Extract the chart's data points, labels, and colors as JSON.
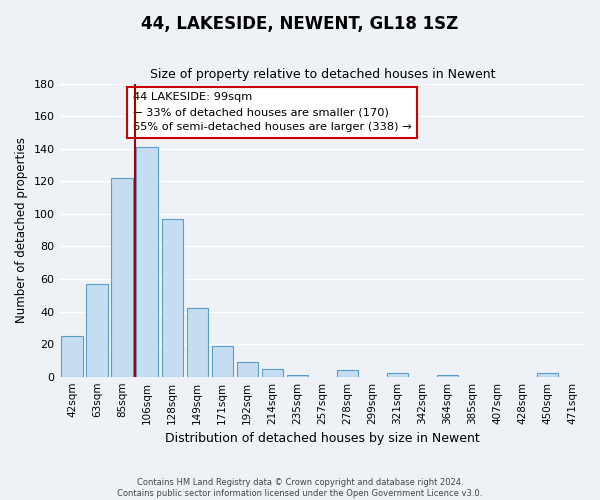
{
  "title": "44, LAKESIDE, NEWENT, GL18 1SZ",
  "subtitle": "Size of property relative to detached houses in Newent",
  "xlabel": "Distribution of detached houses by size in Newent",
  "ylabel": "Number of detached properties",
  "bar_labels": [
    "42sqm",
    "63sqm",
    "85sqm",
    "106sqm",
    "128sqm",
    "149sqm",
    "171sqm",
    "192sqm",
    "214sqm",
    "235sqm",
    "257sqm",
    "278sqm",
    "299sqm",
    "321sqm",
    "342sqm",
    "364sqm",
    "385sqm",
    "407sqm",
    "428sqm",
    "450sqm",
    "471sqm"
  ],
  "bar_values": [
    25,
    57,
    122,
    141,
    97,
    42,
    19,
    9,
    5,
    1,
    0,
    4,
    0,
    2,
    0,
    1,
    0,
    0,
    0,
    2,
    0
  ],
  "bar_color": "#c5ddf0",
  "bar_edge_color": "#5a9ec9",
  "ylim": [
    0,
    180
  ],
  "yticks": [
    0,
    20,
    40,
    60,
    80,
    100,
    120,
    140,
    160,
    180
  ],
  "vline_x": 3.0,
  "vline_color": "#aa0000",
  "annotation_title": "44 LAKESIDE: 99sqm",
  "annotation_line1": "← 33% of detached houses are smaller (170)",
  "annotation_line2": "65% of semi-detached houses are larger (338) →",
  "annotation_box_color": "#ffffff",
  "annotation_box_edge": "#cc0000",
  "footer_line1": "Contains HM Land Registry data © Crown copyright and database right 2024.",
  "footer_line2": "Contains public sector information licensed under the Open Government Licence v3.0.",
  "bg_color": "#eef2f7",
  "grid_color": "#ffffff"
}
